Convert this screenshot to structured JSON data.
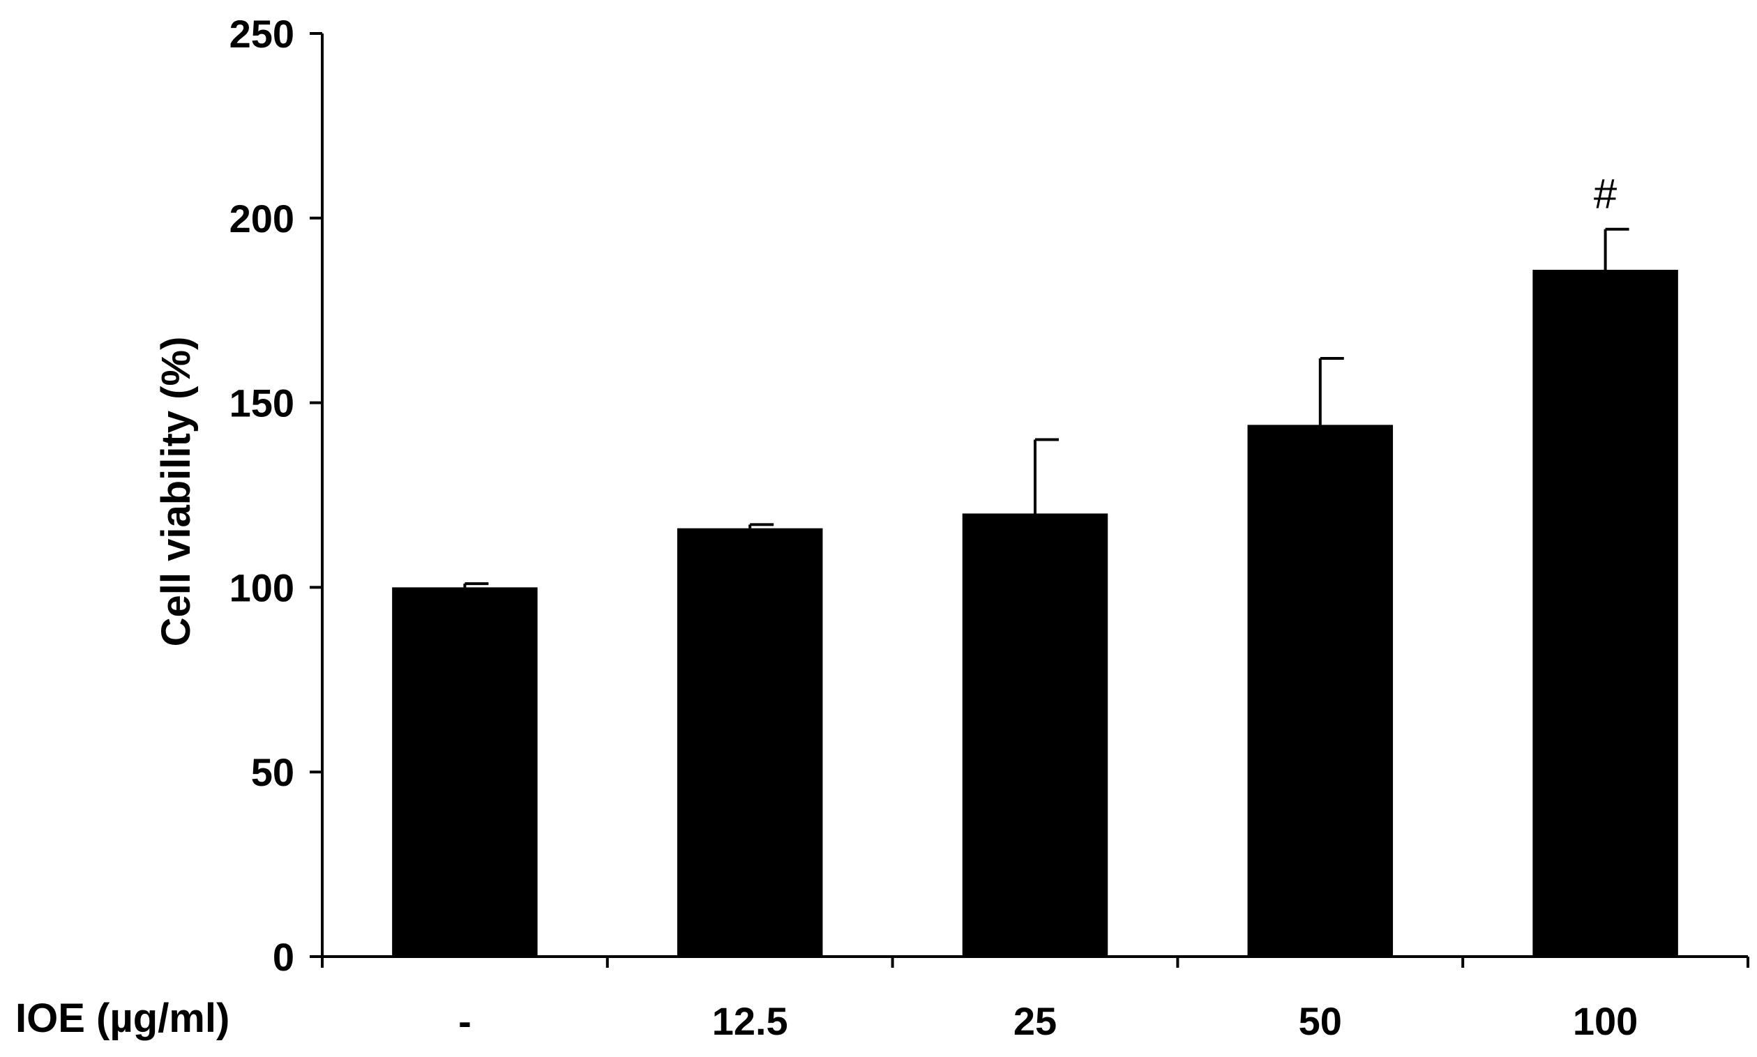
{
  "chart_data": {
    "type": "bar",
    "title": "",
    "xlabel": "IOE (µg/ml)",
    "ylabel": "Cell viability (%)",
    "categories": [
      "-",
      "12.5",
      "25",
      "50",
      "100"
    ],
    "values": [
      100,
      116,
      120,
      144,
      186
    ],
    "errors": [
      1,
      1,
      20,
      18,
      11
    ],
    "annotations": [
      "",
      "",
      "",
      "",
      "#"
    ],
    "ylim": [
      0,
      250
    ],
    "yticks": [
      0,
      50,
      100,
      150,
      200,
      250
    ],
    "grid": false,
    "legend": "none",
    "colors": {
      "bar": "#000000",
      "axis": "#000000",
      "background": "#ffffff"
    }
  }
}
